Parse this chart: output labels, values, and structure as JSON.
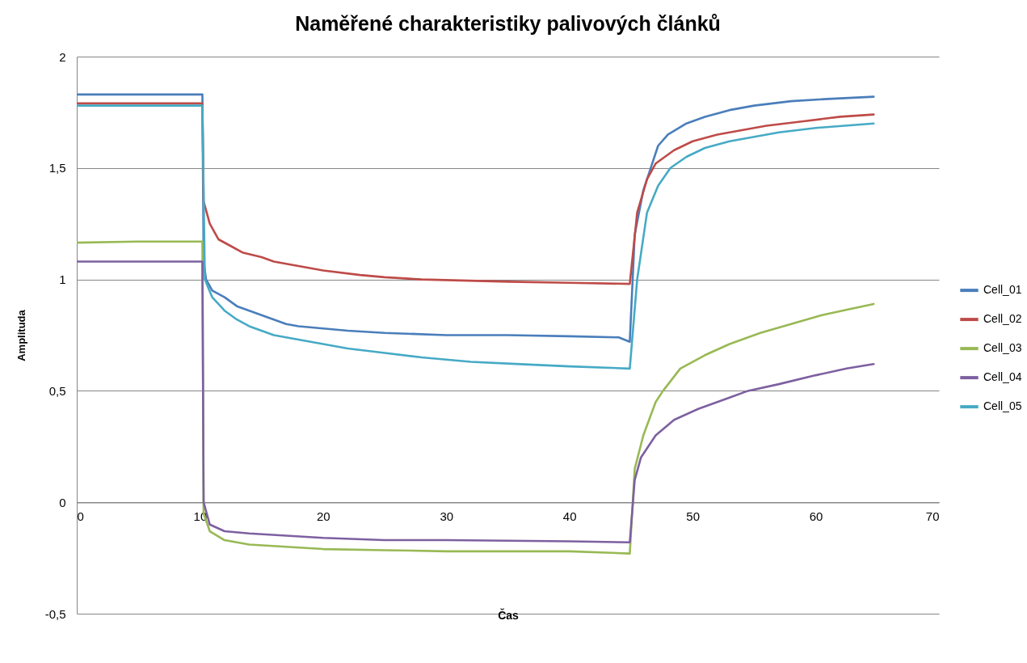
{
  "chart_data": {
    "type": "line",
    "title": "Naměřené charakteristiky palivových článků",
    "xlabel": "Čas",
    "ylabel": "Amplituda",
    "xlim": [
      0,
      70
    ],
    "xticks": [
      0,
      10,
      20,
      30,
      40,
      50,
      60,
      70
    ],
    "ylim": [
      -0.5,
      2
    ],
    "yticks": [
      {
        "value": -0.5,
        "label": "-0,5"
      },
      0,
      {
        "value": 0.5,
        "label": "0,5"
      },
      1,
      {
        "value": 1.5,
        "label": "1,5"
      },
      2
    ],
    "grid": "y",
    "legend": "right",
    "marker": "none",
    "line_style": "solid",
    "series": [
      {
        "name": "Cell_01",
        "color": "#4a7ebb",
        "x": [
          0,
          5,
          10.2,
          10.3,
          10.5,
          11,
          12,
          13,
          14,
          15,
          16,
          17,
          18,
          20,
          22,
          25,
          30,
          35,
          40,
          44,
          44.9,
          45.3,
          46,
          46.6,
          47.2,
          48,
          49.5,
          51,
          53,
          55,
          58,
          61,
          64.7
        ],
        "values": [
          1.83,
          1.83,
          1.83,
          1.08,
          1.0,
          0.95,
          0.92,
          0.88,
          0.86,
          0.84,
          0.82,
          0.8,
          0.79,
          0.78,
          0.77,
          0.76,
          0.75,
          0.75,
          0.745,
          0.74,
          0.72,
          1.2,
          1.4,
          1.5,
          1.6,
          1.65,
          1.7,
          1.73,
          1.76,
          1.78,
          1.8,
          1.81,
          1.82
        ]
      },
      {
        "name": "Cell_02",
        "color": "#be4b48",
        "x": [
          0,
          5,
          10.2,
          10.3,
          10.8,
          11.5,
          12.5,
          13.5,
          15,
          16,
          18,
          20,
          23,
          25,
          28,
          35,
          40,
          44.9,
          45.5,
          46.3,
          47,
          48.5,
          50,
          52,
          54,
          56,
          59,
          62,
          64.7
        ],
        "values": [
          1.79,
          1.79,
          1.79,
          1.35,
          1.25,
          1.18,
          1.15,
          1.12,
          1.1,
          1.08,
          1.06,
          1.04,
          1.02,
          1.01,
          1.0,
          0.99,
          0.985,
          0.98,
          1.3,
          1.45,
          1.52,
          1.58,
          1.62,
          1.65,
          1.67,
          1.69,
          1.71,
          1.73,
          1.74
        ]
      },
      {
        "name": "Cell_03",
        "color": "#98b954",
        "x": [
          0,
          5,
          10.2,
          10.3,
          10.8,
          12,
          14,
          17,
          20,
          25,
          30,
          40,
          44.9,
          45.3,
          46,
          47,
          47.6,
          49,
          51,
          53,
          55.5,
          58,
          60.5,
          63,
          64.7
        ],
        "values": [
          1.165,
          1.17,
          1.17,
          -0.05,
          -0.13,
          -0.17,
          -0.19,
          -0.2,
          -0.21,
          -0.215,
          -0.22,
          -0.22,
          -0.23,
          0.15,
          0.3,
          0.45,
          0.5,
          0.6,
          0.66,
          0.71,
          0.76,
          0.8,
          0.84,
          0.87,
          0.89
        ]
      },
      {
        "name": "Cell_04",
        "color": "#7d60a0",
        "x": [
          0,
          5,
          10.2,
          10.3,
          10.8,
          12,
          14,
          17,
          20,
          25,
          30,
          40,
          44.9,
          45.3,
          45.8,
          47,
          48.5,
          50.5,
          53,
          54.5,
          57,
          60,
          62.5,
          64.7
        ],
        "values": [
          1.08,
          1.08,
          1.08,
          0,
          -0.1,
          -0.13,
          -0.14,
          -0.15,
          -0.16,
          -0.17,
          -0.17,
          -0.175,
          -0.18,
          0.1,
          0.2,
          0.3,
          0.37,
          0.42,
          0.47,
          0.5,
          0.53,
          0.57,
          0.6,
          0.62
        ]
      },
      {
        "name": "Cell_05",
        "color": "#46aac5",
        "x": [
          0,
          5,
          10.2,
          10.4,
          11,
          12,
          13,
          14,
          15,
          16,
          18,
          20,
          22,
          25,
          28,
          32,
          36,
          40,
          44.9,
          45.5,
          46.3,
          47.2,
          48.2,
          49.5,
          51,
          53,
          55,
          57,
          60,
          64.7
        ],
        "values": [
          1.78,
          1.78,
          1.78,
          1.0,
          0.92,
          0.86,
          0.82,
          0.79,
          0.77,
          0.75,
          0.73,
          0.71,
          0.69,
          0.67,
          0.65,
          0.63,
          0.62,
          0.61,
          0.6,
          1.0,
          1.3,
          1.42,
          1.5,
          1.55,
          1.59,
          1.62,
          1.64,
          1.66,
          1.68,
          1.7
        ]
      }
    ]
  }
}
